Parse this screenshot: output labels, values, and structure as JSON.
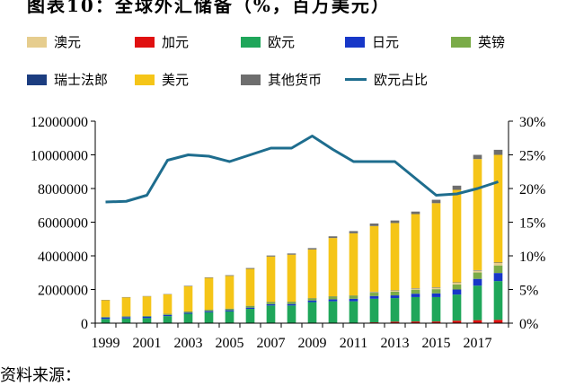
{
  "chart_data": {
    "type": "bar+line",
    "stacked": true,
    "categories": [
      1999,
      2000,
      2001,
      2002,
      2003,
      2004,
      2005,
      2006,
      2007,
      2008,
      2009,
      2010,
      2011,
      2012,
      2013,
      2014,
      2015,
      2016,
      2017,
      2018
    ],
    "x_tick_labels": [
      "1999",
      "2001",
      "2003",
      "2005",
      "2007",
      "2009",
      "2011",
      "2013",
      "2015",
      "2017"
    ],
    "left_axis": {
      "ylim": [
        0,
        12000000
      ],
      "ticks": [
        "0",
        "2000000",
        "4000000",
        "6000000",
        "8000000",
        "10000000",
        "12000000"
      ]
    },
    "right_axis": {
      "ylim": [
        0,
        30
      ],
      "ticks": [
        "0%",
        "5%",
        "10%",
        "15%",
        "20%",
        "25%",
        "30%"
      ]
    },
    "series": [
      {
        "name": "加元",
        "color": "#e01010",
        "values": [
          0,
          0,
          0,
          0,
          0,
          0,
          0,
          0,
          0,
          0,
          0,
          0,
          0,
          50000,
          90000,
          100000,
          100000,
          150000,
          180000,
          200000
        ]
      },
      {
        "name": "欧元",
        "color": "#1fa65a",
        "values": [
          250000,
          280000,
          300000,
          420000,
          560000,
          650000,
          700000,
          850000,
          1050000,
          1050000,
          1250000,
          1300000,
          1300000,
          1400000,
          1400000,
          1450000,
          1450000,
          1550000,
          2050000,
          2300000
        ]
      },
      {
        "name": "日元",
        "color": "#1737c8",
        "values": [
          80000,
          80000,
          75000,
          70000,
          60000,
          65000,
          70000,
          75000,
          80000,
          90000,
          100000,
          120000,
          150000,
          160000,
          160000,
          200000,
          220000,
          300000,
          400000,
          480000
        ]
      },
      {
        "name": "英镑",
        "color": "#7aab48",
        "values": [
          40000,
          40000,
          45000,
          50000,
          60000,
          65000,
          80000,
          90000,
          120000,
          120000,
          120000,
          160000,
          180000,
          200000,
          220000,
          240000,
          250000,
          300000,
          380000,
          450000
        ]
      },
      {
        "name": "澳元",
        "color": "#e6cd8e",
        "values": [
          0,
          0,
          0,
          0,
          0,
          0,
          0,
          0,
          0,
          0,
          0,
          0,
          0,
          50000,
          70000,
          80000,
          90000,
          100000,
          120000,
          150000
        ]
      },
      {
        "name": "瑞士法郎",
        "color": "#1c3d80",
        "values": [
          10000,
          10000,
          10000,
          10000,
          10000,
          10000,
          10000,
          10000,
          10000,
          10000,
          10000,
          10000,
          10000,
          10000,
          10000,
          10000,
          20000,
          20000,
          20000,
          20000
        ]
      },
      {
        "name": "美元",
        "color": "#f5c518",
        "values": [
          980000,
          1120000,
          1160000,
          1160000,
          1500000,
          1900000,
          1950000,
          2200000,
          2700000,
          2800000,
          2900000,
          3470000,
          3700000,
          3900000,
          4000000,
          4400000,
          5000000,
          5500000,
          6600000,
          6400000
        ]
      },
      {
        "name": "其他货币",
        "color": "#6e6e6e",
        "values": [
          20000,
          20000,
          20000,
          20000,
          30000,
          30000,
          40000,
          50000,
          60000,
          70000,
          80000,
          100000,
          130000,
          150000,
          150000,
          150000,
          200000,
          250000,
          250000,
          300000
        ]
      },
      {
        "name": "欧元占比",
        "color": "#1e6d8e",
        "line": true,
        "values": [
          18.0,
          18.1,
          19.0,
          24.2,
          25.0,
          24.8,
          24.0,
          25.0,
          26.0,
          26.0,
          27.8,
          25.8,
          24.0,
          24.0,
          24.0,
          21.5,
          19.0,
          19.2,
          20.0,
          21.0
        ]
      }
    ]
  },
  "legend": {
    "items": [
      {
        "label": "澳元",
        "color": "#e6cd8e",
        "kind": "box"
      },
      {
        "label": "加元",
        "color": "#e01010",
        "kind": "box"
      },
      {
        "label": "欧元",
        "color": "#1fa65a",
        "kind": "box"
      },
      {
        "label": "日元",
        "color": "#1737c8",
        "kind": "box"
      },
      {
        "label": "英镑",
        "color": "#7aab48",
        "kind": "box"
      },
      {
        "label": "瑞士法郎",
        "color": "#1c3d80",
        "kind": "box"
      },
      {
        "label": "美元",
        "color": "#f5c518",
        "kind": "box"
      },
      {
        "label": "其他货币",
        "color": "#6e6e6e",
        "kind": "box"
      },
      {
        "label": "欧元占比",
        "color": "#1e6d8e",
        "kind": "line"
      }
    ]
  },
  "title_fragment": "图表10：全球外汇储备（%，百万美元）",
  "bottom_fragment": "资料来源："
}
